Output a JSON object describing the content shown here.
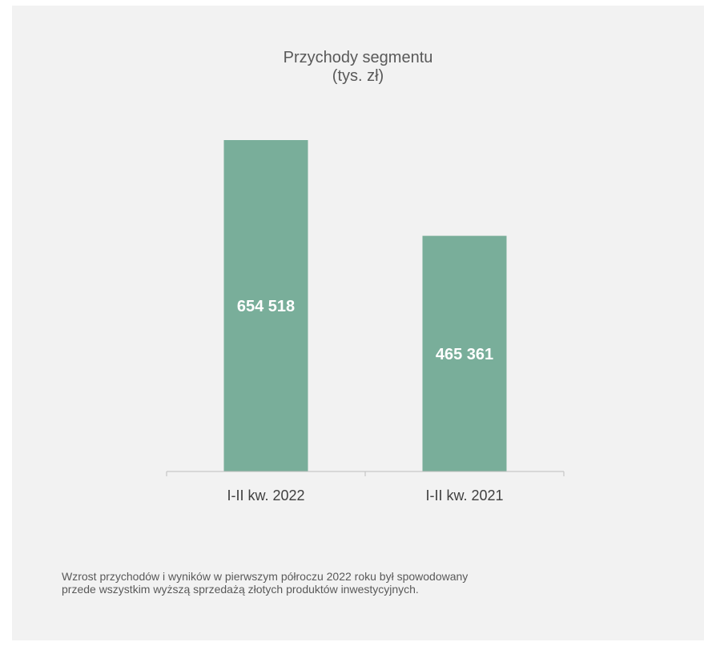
{
  "chart_data": {
    "type": "bar",
    "title": "Przychody segmentu",
    "subtitle": "(tys. zł)",
    "categories": [
      "I-II kw. 2022",
      "I-II kw. 2021"
    ],
    "values": [
      654518,
      465361
    ],
    "value_labels": [
      "654 518",
      "465 361"
    ],
    "xlabel": "",
    "ylabel": "",
    "ylim": [
      0,
      700000
    ],
    "grid": false,
    "legend": "none",
    "bar_color": "#79ae9a"
  },
  "note": {
    "line1": "Wzrost przychodów i wyników w pierwszym półroczu 2022 roku był spowodowany",
    "line2": "przede wszystkim wyższą sprzedażą złotych produktów inwestycyjnych."
  },
  "colors": {
    "panel_background": "#f2f2f2",
    "axis": "#bfbfbf",
    "title_text": "#595959"
  }
}
